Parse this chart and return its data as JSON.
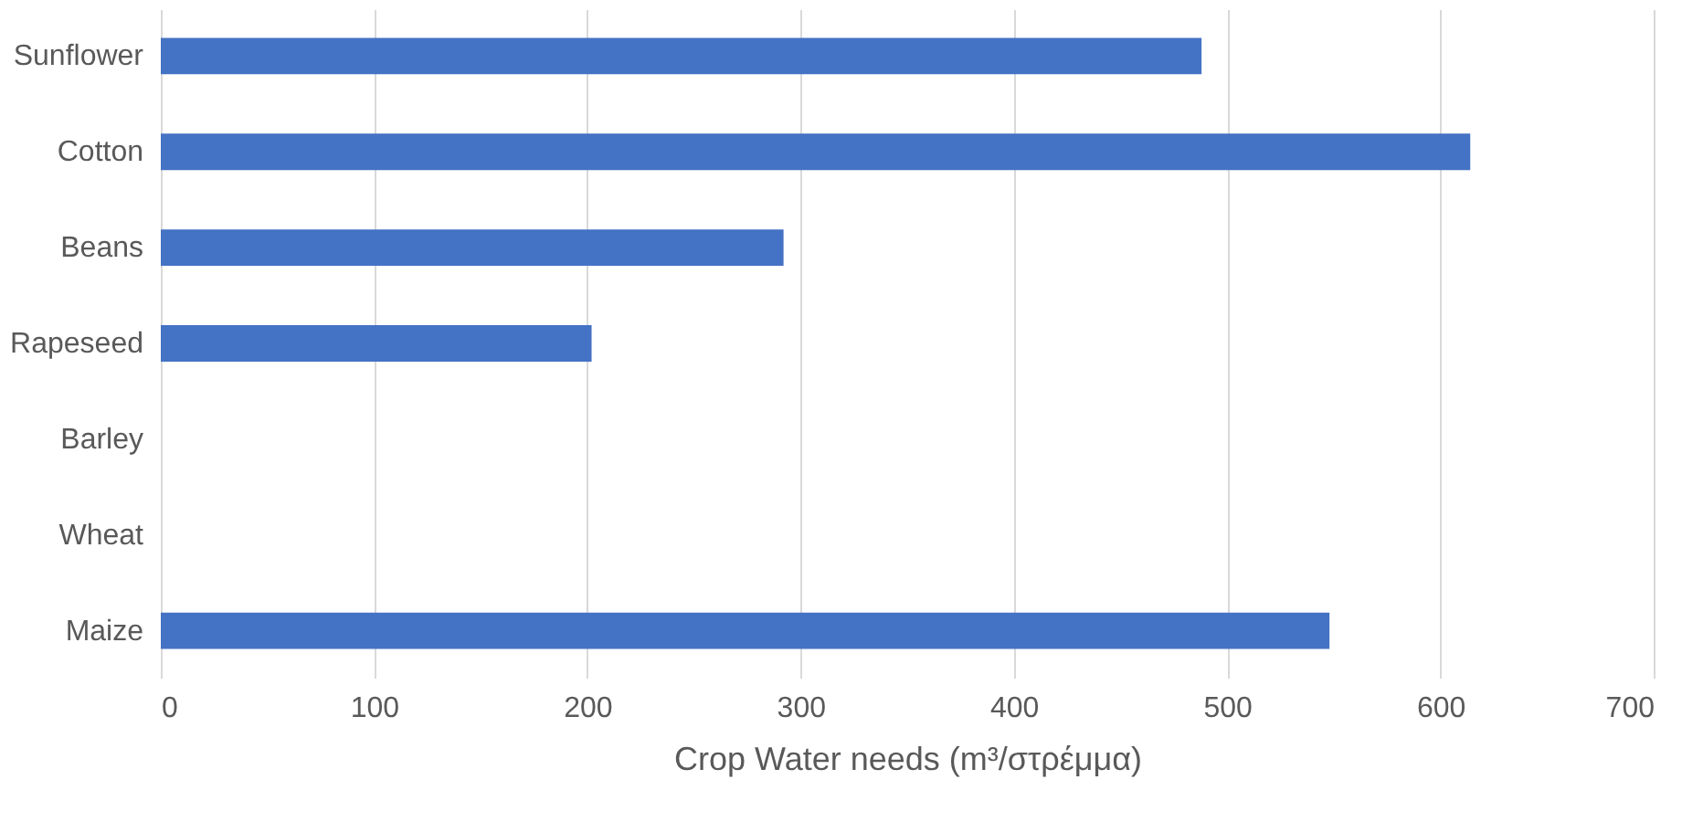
{
  "chart_data": {
    "type": "bar",
    "orientation": "horizontal",
    "categories": [
      "Sunflower",
      "Cotton",
      "Beans",
      "Rapeseed",
      "Barley",
      "Wheat",
      "Maize"
    ],
    "values": [
      488,
      614,
      292,
      202,
      null,
      null,
      548
    ],
    "color": "#4472c4",
    "xlabel": "Crop Water needs (m³/στρέμμα)",
    "xlim": [
      0,
      700
    ],
    "xticks": [
      0,
      100,
      200,
      300,
      400,
      500,
      600,
      700
    ],
    "grid": "x"
  }
}
